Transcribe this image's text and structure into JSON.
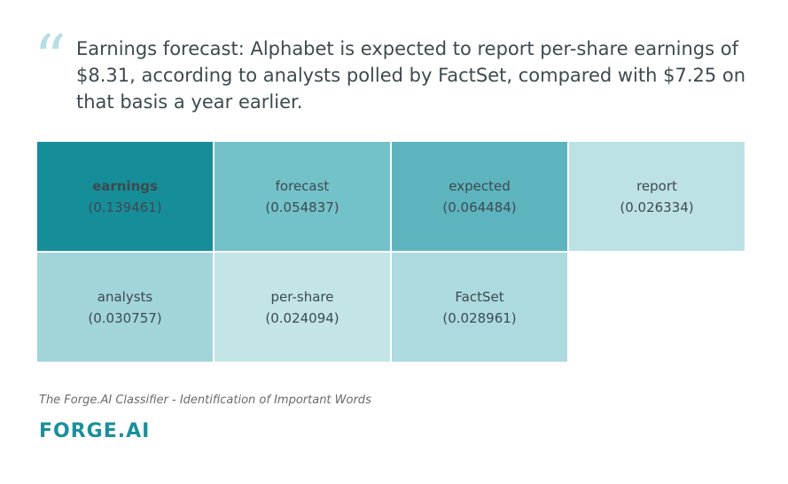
{
  "quote": {
    "mark": "“",
    "text": "Earnings forecast: Alphabet is expected to report per-share earnings of $8.31, according to analysts polled by FactSet, compared with $7.25 on that basis a year earlier."
  },
  "grid": {
    "cells": [
      {
        "word": "earnings",
        "score": "(0.139461)",
        "color": "#168e99",
        "bold": true
      },
      {
        "word": "forecast",
        "score": "(0.054837)",
        "color": "#73c2c9",
        "bold": false
      },
      {
        "word": "expected",
        "score": "(0.064484)",
        "color": "#5db4bf",
        "bold": false
      },
      {
        "word": "report",
        "score": "(0.026334)",
        "color": "#bde2e6",
        "bold": false
      },
      {
        "word": "analysts",
        "score": "(0.030757)",
        "color": "#a2d5da",
        "bold": false
      },
      {
        "word": "per-share",
        "score": "(0.024094)",
        "color": "#c3e5e8",
        "bold": false
      },
      {
        "word": "FactSet",
        "score": "(0.028961)",
        "color": "#acdadf",
        "bold": false
      }
    ],
    "columns": 4
  },
  "caption": "The Forge.AI Classifier - Identification of Important Words",
  "logo": "FORGE.AI"
}
